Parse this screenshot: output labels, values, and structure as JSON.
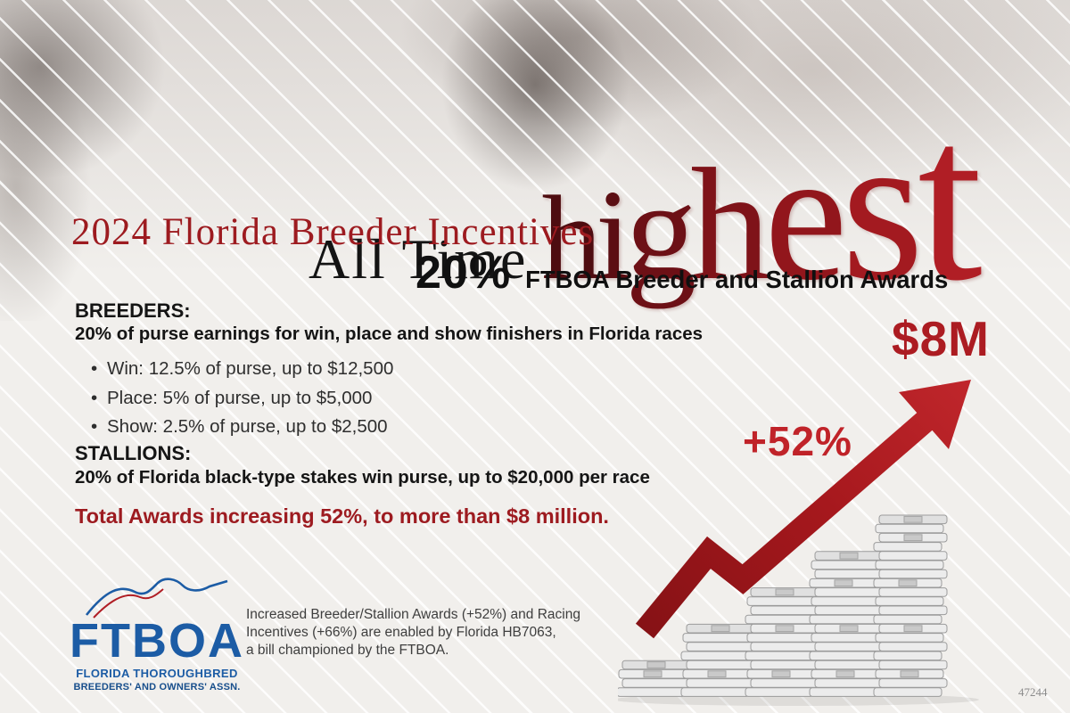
{
  "header": {
    "all_time": "All Time",
    "highest": "highest",
    "year_title": "2024 Florida Breeder Incentives",
    "big_pct": "20%",
    "awards_label": "FTBOA Breeder and Stallion Awards"
  },
  "breeders": {
    "heading": "BREEDERS:",
    "intro": "20% of purse earnings for win, place and show finishers in Florida races",
    "bullets": [
      "Win: 12.5% of purse, up to $12,500",
      "Place: 5% of purse, up to $5,000",
      "Show: 2.5% of purse, up to $2,500"
    ]
  },
  "stallions": {
    "heading": "STALLIONS:",
    "text": "20% of Florida black-type stakes win purse, up to $20,000 per race"
  },
  "total_line": "Total Awards increasing 52%, to more than $8 million.",
  "growth": {
    "pct": "+52%",
    "amount": "$8M"
  },
  "logo": {
    "acronym": "FTBOA",
    "line1": "FLORIDA THOROUGHBRED",
    "line2": "BREEDERS' AND OWNERS' ASSN."
  },
  "note_lines": [
    "Increased Breeder/Stallion Awards (+52%) and Racing",
    "Incentives (+66%) are enabled by Florida HB7063,",
    "a bill championed by the FTBOA."
  ],
  "corner_number": "47244",
  "colors": {
    "accent_red": "#9d1b20",
    "logo_blue": "#1c5ca5"
  }
}
